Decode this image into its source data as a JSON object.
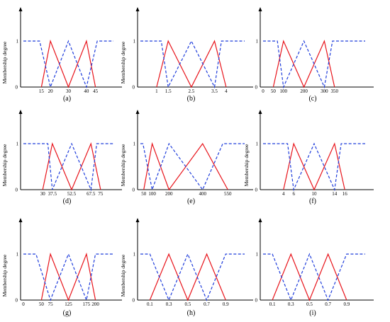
{
  "colors": {
    "red": "#e8141b",
    "blue": "#1f3ddb",
    "axis": "#000000"
  },
  "ylabel": "Membership degree",
  "y_ticks": [
    "0",
    "1"
  ],
  "chart_data": [
    {
      "type": "line",
      "label": "(a)",
      "ylabel": "Membership degree",
      "ylim": [
        0,
        1
      ],
      "ticks": [
        15,
        20,
        30,
        40,
        45
      ],
      "tick_labels": [
        "15",
        "20",
        "30",
        "40",
        "45"
      ],
      "x_range": [
        5,
        55
      ],
      "series": [
        {
          "color": "red",
          "style": "solid",
          "x": [
            15,
            20,
            30,
            40,
            45
          ],
          "y": [
            0,
            1,
            0,
            1,
            0
          ]
        },
        {
          "color": "blue",
          "style": "dashed",
          "x": [
            5,
            14,
            20,
            30,
            40,
            46,
            55
          ],
          "y": [
            1,
            1,
            0,
            1,
            0,
            1,
            1
          ]
        }
      ]
    },
    {
      "type": "line",
      "label": "(b)",
      "ylabel": "Membership degree",
      "ylim": [
        0,
        1
      ],
      "ticks": [
        1,
        1.5,
        2.5,
        3.5,
        4
      ],
      "tick_labels": [
        "1",
        "1.5",
        "2.5",
        "3.5",
        "4"
      ],
      "x_range": [
        0.3,
        4.8
      ],
      "series": [
        {
          "color": "red",
          "style": "solid",
          "x": [
            1,
            1.5,
            2.5,
            3.5,
            4
          ],
          "y": [
            0,
            1,
            0,
            1,
            0
          ]
        },
        {
          "color": "blue",
          "style": "dashed",
          "x": [
            0.3,
            1.2,
            1.5,
            2.5,
            3.5,
            3.8,
            4.8
          ],
          "y": [
            1,
            1,
            0,
            1,
            0,
            1,
            1
          ]
        }
      ]
    },
    {
      "type": "line",
      "label": "(c)",
      "ylabel": "",
      "ylim": [
        0,
        1
      ],
      "ticks": [
        0,
        50,
        100,
        200,
        300,
        350
      ],
      "tick_labels": [
        "0",
        "50",
        "100",
        "200",
        "300",
        "350"
      ],
      "x_range": [
        0,
        500
      ],
      "series": [
        {
          "color": "red",
          "style": "solid",
          "x": [
            50,
            100,
            200,
            300,
            350
          ],
          "y": [
            0,
            1,
            0,
            1,
            0
          ]
        },
        {
          "color": "blue",
          "style": "dashed",
          "x": [
            0,
            70,
            100,
            200,
            300,
            340,
            500
          ],
          "y": [
            1,
            1,
            0,
            1,
            0,
            1,
            1
          ]
        }
      ]
    },
    {
      "type": "line",
      "label": "(d)",
      "ylabel": "Membership degree",
      "ylim": [
        0,
        1
      ],
      "ticks": [
        30,
        37.5,
        52.5,
        67.5,
        75
      ],
      "tick_labels": [
        "30",
        "37.5",
        "52.5",
        "67.5",
        "75"
      ],
      "x_range": [
        15,
        85
      ],
      "series": [
        {
          "color": "red",
          "style": "solid",
          "x": [
            30,
            37.5,
            52.5,
            67.5,
            75
          ],
          "y": [
            0,
            1,
            0,
            1,
            0
          ]
        },
        {
          "color": "blue",
          "style": "dashed",
          "x": [
            15,
            34,
            37.5,
            52.5,
            67.5,
            72,
            85
          ],
          "y": [
            1,
            1,
            0,
            1,
            0,
            1,
            1
          ]
        }
      ]
    },
    {
      "type": "line",
      "label": "(e)",
      "ylabel": "Membership degree",
      "ylim": [
        0,
        1
      ],
      "ticks": [
        50,
        100,
        200,
        400,
        550
      ],
      "tick_labels": [
        "50",
        "100",
        "200",
        "400",
        "550"
      ],
      "x_range": [
        30,
        650
      ],
      "series": [
        {
          "color": "red",
          "style": "solid",
          "x": [
            50,
            100,
            200,
            400,
            550
          ],
          "y": [
            0,
            1,
            0,
            1,
            0
          ]
        },
        {
          "color": "blue",
          "style": "dashed",
          "x": [
            30,
            45,
            100,
            200,
            400,
            520,
            650
          ],
          "y": [
            1,
            1,
            0,
            1,
            0,
            1,
            1
          ]
        }
      ]
    },
    {
      "type": "line",
      "label": "(f)",
      "ylabel": "Membership degree",
      "ylim": [
        0,
        1
      ],
      "ticks": [
        4,
        6,
        10,
        14,
        16
      ],
      "tick_labels": [
        "4",
        "6",
        "10",
        "14",
        "16"
      ],
      "x_range": [
        0,
        20
      ],
      "series": [
        {
          "color": "red",
          "style": "solid",
          "x": [
            4,
            6,
            10,
            14,
            16
          ],
          "y": [
            0,
            1,
            0,
            1,
            0
          ]
        },
        {
          "color": "blue",
          "style": "dashed",
          "x": [
            0,
            4.8,
            6,
            10,
            14,
            15.3,
            20
          ],
          "y": [
            1,
            1,
            0,
            1,
            0,
            1,
            1
          ]
        }
      ]
    },
    {
      "type": "line",
      "label": "(g)",
      "ylabel": "Membership degree",
      "ylim": [
        0,
        1
      ],
      "ticks": [
        0,
        50,
        75,
        125,
        175,
        200
      ],
      "tick_labels": [
        "0",
        "50",
        "75",
        "125",
        "175",
        "200"
      ],
      "x_range": [
        0,
        250
      ],
      "series": [
        {
          "color": "red",
          "style": "solid",
          "x": [
            50,
            75,
            125,
            175,
            200
          ],
          "y": [
            0,
            1,
            0,
            1,
            0
          ]
        },
        {
          "color": "blue",
          "style": "dashed",
          "x": [
            0,
            35,
            75,
            125,
            175,
            200,
            250
          ],
          "y": [
            1,
            1,
            0,
            1,
            0,
            1,
            1
          ]
        }
      ]
    },
    {
      "type": "line",
      "label": "(h)",
      "ylabel": "Membership degree",
      "ylim": [
        0,
        1
      ],
      "ticks": [
        0.1,
        0.3,
        0.5,
        0.7,
        0.9
      ],
      "tick_labels": [
        "0.1",
        "0.3",
        "0.5",
        "0.7",
        "0.9"
      ],
      "x_range": [
        0,
        1.1
      ],
      "series": [
        {
          "color": "red",
          "style": "solid",
          "x": [
            0.1,
            0.3,
            0.5,
            0.7,
            0.9
          ],
          "y": [
            0,
            1,
            0,
            1,
            0
          ]
        },
        {
          "color": "blue",
          "style": "dashed",
          "x": [
            0,
            0.1,
            0.3,
            0.5,
            0.7,
            0.9,
            1.1
          ],
          "y": [
            1,
            1,
            0,
            1,
            0,
            1,
            1
          ]
        }
      ]
    },
    {
      "type": "line",
      "label": "(i)",
      "ylabel": "",
      "ylim": [
        0,
        1
      ],
      "ticks": [
        0.1,
        0.3,
        0.5,
        0.7,
        0.9
      ],
      "tick_labels": [
        "0.1",
        "0.3",
        "0.5",
        "0.7",
        "0.9"
      ],
      "x_range": [
        0,
        1.1
      ],
      "series": [
        {
          "color": "red",
          "style": "solid",
          "x": [
            0.1,
            0.3,
            0.5,
            0.7,
            0.9
          ],
          "y": [
            0,
            1,
            0,
            1,
            0
          ]
        },
        {
          "color": "blue",
          "style": "dashed",
          "x": [
            0,
            0.1,
            0.3,
            0.5,
            0.7,
            0.9,
            1.1
          ],
          "y": [
            1,
            1,
            0,
            1,
            0,
            1,
            1
          ]
        }
      ]
    }
  ]
}
